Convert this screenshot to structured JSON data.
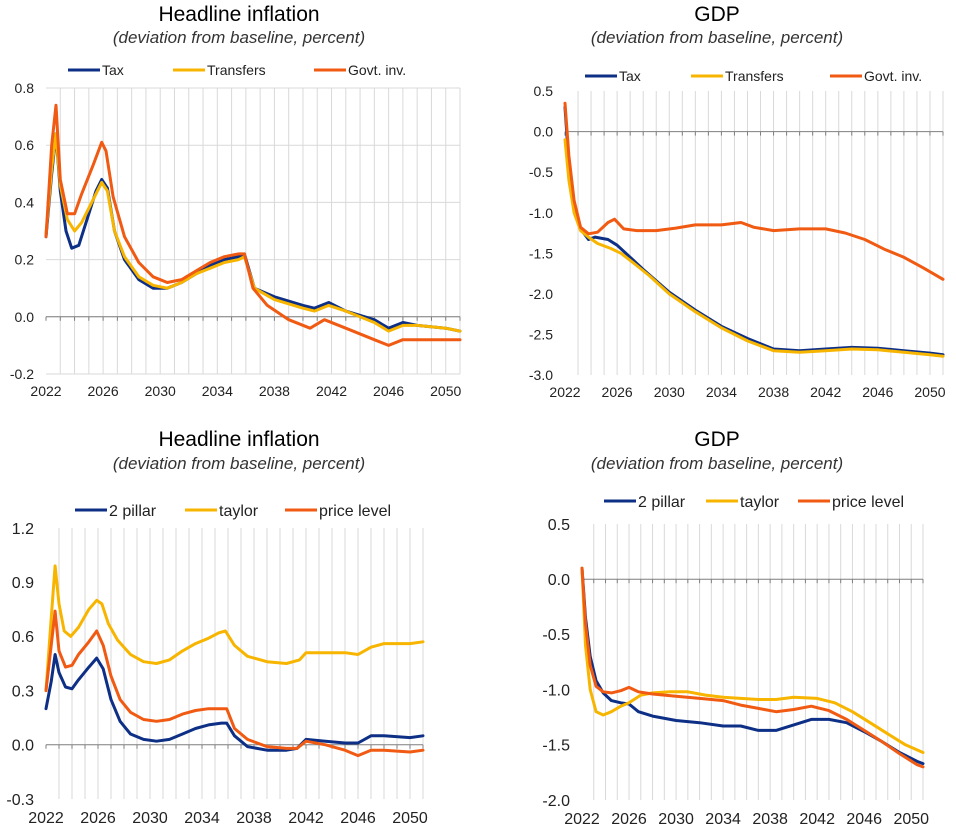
{
  "chart_data": [
    {
      "type": "line",
      "title": "Headline inflation",
      "subtitle": "(deviation from baseline, percent)",
      "xlim": [
        2022,
        2051
      ],
      "ylim": [
        -0.2,
        0.8
      ],
      "yticks": [
        "-0.2",
        "0.0",
        "0.2",
        "0.4",
        "0.6",
        "0.8"
      ],
      "xticks": [
        "2022",
        "2026",
        "2030",
        "2034",
        "2038",
        "2042",
        "2046",
        "2050"
      ],
      "grid": "horizontal and vertical",
      "legend": "top",
      "series": [
        {
          "name": "Tax",
          "color": "#0d2f86",
          "x": [
            2022,
            2022.4,
            2022.7,
            2023,
            2023.4,
            2023.8,
            2024.3,
            2025,
            2025.5,
            2025.9,
            2026.3,
            2026.8,
            2027.5,
            2028.5,
            2029.5,
            2030.5,
            2031.5,
            2032.5,
            2033.5,
            2034.5,
            2035.5,
            2035.9,
            2036.6,
            2038,
            2040,
            2040.8,
            2041.8,
            2043,
            2045,
            2046,
            2047,
            2048,
            2050,
            2051
          ],
          "y": [
            0.28,
            0.5,
            0.64,
            0.44,
            0.3,
            0.24,
            0.25,
            0.36,
            0.44,
            0.48,
            0.45,
            0.3,
            0.2,
            0.13,
            0.1,
            0.1,
            0.12,
            0.15,
            0.18,
            0.2,
            0.21,
            0.22,
            0.1,
            0.07,
            0.04,
            0.03,
            0.05,
            0.02,
            -0.01,
            -0.04,
            -0.02,
            -0.03,
            -0.04,
            -0.05
          ]
        },
        {
          "name": "Transfers",
          "color": "#f7b500",
          "x": [
            2022,
            2022.4,
            2022.7,
            2023,
            2023.5,
            2024,
            2024.5,
            2025.2,
            2025.9,
            2026.3,
            2026.8,
            2027.5,
            2028.5,
            2029.5,
            2030.5,
            2031.5,
            2032.5,
            2033.5,
            2034.5,
            2035.5,
            2035.9,
            2036.6,
            2038,
            2040,
            2040.8,
            2041.8,
            2043,
            2045,
            2046,
            2047,
            2048,
            2050,
            2051
          ],
          "y": [
            0.29,
            0.52,
            0.64,
            0.46,
            0.34,
            0.3,
            0.33,
            0.4,
            0.47,
            0.44,
            0.3,
            0.21,
            0.14,
            0.11,
            0.1,
            0.12,
            0.15,
            0.17,
            0.19,
            0.2,
            0.21,
            0.1,
            0.06,
            0.03,
            0.02,
            0.04,
            0.02,
            -0.02,
            -0.05,
            -0.03,
            -0.03,
            -0.04,
            -0.05
          ]
        },
        {
          "name": "Govt. inv.",
          "color": "#f05a12",
          "x": [
            2022,
            2022.4,
            2022.7,
            2023,
            2023.5,
            2024,
            2024.5,
            2025.3,
            2025.9,
            2026.2,
            2026.7,
            2027.5,
            2028.5,
            2029.5,
            2030.5,
            2031.5,
            2032.5,
            2033.5,
            2034.5,
            2035.5,
            2035.9,
            2036.5,
            2037.5,
            2039,
            2040.5,
            2041.5,
            2043,
            2045,
            2046,
            2047,
            2048,
            2050,
            2051
          ],
          "y": [
            0.28,
            0.6,
            0.74,
            0.48,
            0.36,
            0.36,
            0.43,
            0.53,
            0.61,
            0.58,
            0.42,
            0.28,
            0.19,
            0.14,
            0.12,
            0.13,
            0.16,
            0.19,
            0.21,
            0.22,
            0.22,
            0.1,
            0.04,
            -0.01,
            -0.04,
            -0.01,
            -0.04,
            -0.08,
            -0.1,
            -0.08,
            -0.08,
            -0.08,
            -0.08
          ]
        }
      ]
    },
    {
      "type": "line",
      "title": "GDP",
      "subtitle": "(deviation from baseline, percent)",
      "xlim": [
        2022,
        2051
      ],
      "ylim": [
        -3.0,
        0.5
      ],
      "yticks": [
        "-3.0",
        "-2.5",
        "-2.0",
        "-1.5",
        "-1.0",
        "-0.5",
        "0.0",
        "0.5"
      ],
      "xticks": [
        "2022",
        "2026",
        "2030",
        "2034",
        "2038",
        "2042",
        "2046",
        "2050"
      ],
      "grid": "vertical",
      "legend": "top",
      "series": [
        {
          "name": "Tax",
          "color": "#0d2f86",
          "x": [
            2022,
            2022.3,
            2022.7,
            2023.2,
            2023.8,
            2024.3,
            2025.3,
            2026,
            2027,
            2028,
            2030,
            2032,
            2034,
            2036,
            2038,
            2040,
            2042,
            2044,
            2046,
            2048,
            2050,
            2051
          ],
          "y": [
            0.3,
            -0.4,
            -0.9,
            -1.2,
            -1.33,
            -1.3,
            -1.33,
            -1.4,
            -1.55,
            -1.7,
            -1.98,
            -2.2,
            -2.4,
            -2.55,
            -2.68,
            -2.7,
            -2.68,
            -2.66,
            -2.67,
            -2.7,
            -2.73,
            -2.75
          ]
        },
        {
          "name": "Transfers",
          "color": "#f7b500",
          "x": [
            2022,
            2022.3,
            2022.7,
            2023.2,
            2023.8,
            2024.5,
            2025.5,
            2026.3,
            2027.5,
            2028.5,
            2030,
            2032,
            2034,
            2036,
            2038,
            2040,
            2042,
            2044,
            2046,
            2048,
            2050,
            2051
          ],
          "y": [
            -0.1,
            -0.6,
            -1.0,
            -1.22,
            -1.3,
            -1.38,
            -1.44,
            -1.5,
            -1.65,
            -1.78,
            -2.0,
            -2.22,
            -2.42,
            -2.58,
            -2.7,
            -2.72,
            -2.7,
            -2.68,
            -2.69,
            -2.72,
            -2.75,
            -2.77
          ]
        },
        {
          "name": "Govt. inv.",
          "color": "#f05a12",
          "x": [
            2022,
            2022.3,
            2022.7,
            2023.2,
            2023.8,
            2024.5,
            2025.3,
            2025.8,
            2026.5,
            2027.5,
            2029,
            2030.5,
            2032,
            2034,
            2035.5,
            2036.5,
            2038,
            2040,
            2042,
            2043.5,
            2045,
            2046.5,
            2048,
            2049.5,
            2051
          ],
          "y": [
            0.35,
            -0.3,
            -0.85,
            -1.18,
            -1.26,
            -1.24,
            -1.12,
            -1.08,
            -1.2,
            -1.22,
            -1.22,
            -1.19,
            -1.15,
            -1.15,
            -1.12,
            -1.18,
            -1.22,
            -1.2,
            -1.2,
            -1.25,
            -1.33,
            -1.45,
            -1.55,
            -1.68,
            -1.82
          ]
        }
      ]
    },
    {
      "type": "line",
      "title": "Headline inflation",
      "subtitle": "(deviation from baseline, percent)",
      "xlim": [
        2022,
        2051
      ],
      "ylim": [
        -0.3,
        1.2
      ],
      "yticks": [
        "-0.3",
        "0.0",
        "0.3",
        "0.6",
        "0.9",
        "1.2"
      ],
      "xticks": [
        "2022",
        "2026",
        "2030",
        "2034",
        "2038",
        "2042",
        "2046",
        "2050"
      ],
      "grid": "vertical",
      "legend": "top",
      "series": [
        {
          "name": "2 pillar",
          "color": "#0d2f86",
          "x": [
            2022,
            2022.4,
            2022.7,
            2023,
            2023.5,
            2024,
            2024.5,
            2025.3,
            2025.9,
            2026.4,
            2027,
            2027.7,
            2028.5,
            2029.5,
            2030.5,
            2031.5,
            2032.5,
            2033.5,
            2034.5,
            2035.5,
            2035.9,
            2036.5,
            2037.5,
            2039,
            2040.5,
            2041.3,
            2042,
            2043.5,
            2045,
            2046,
            2047,
            2048,
            2050,
            2051
          ],
          "y": [
            0.2,
            0.35,
            0.5,
            0.4,
            0.32,
            0.31,
            0.36,
            0.43,
            0.48,
            0.42,
            0.25,
            0.13,
            0.06,
            0.03,
            0.02,
            0.03,
            0.06,
            0.09,
            0.11,
            0.12,
            0.12,
            0.05,
            -0.01,
            -0.03,
            -0.03,
            -0.02,
            0.03,
            0.02,
            0.01,
            0.01,
            0.05,
            0.05,
            0.04,
            0.05
          ]
        },
        {
          "name": "taylor",
          "color": "#f7b500",
          "x": [
            2022,
            2022.4,
            2022.7,
            2023,
            2023.4,
            2023.9,
            2024.5,
            2025.3,
            2025.9,
            2026.3,
            2026.8,
            2027.5,
            2028.5,
            2029.5,
            2030.5,
            2031.5,
            2032.5,
            2033.5,
            2034.5,
            2035.3,
            2035.8,
            2036.5,
            2037.5,
            2039,
            2040.5,
            2041.5,
            2042,
            2043.5,
            2045,
            2046,
            2047,
            2048,
            2050,
            2051
          ],
          "y": [
            0.3,
            0.7,
            0.99,
            0.78,
            0.63,
            0.6,
            0.65,
            0.75,
            0.8,
            0.78,
            0.67,
            0.58,
            0.5,
            0.46,
            0.45,
            0.47,
            0.52,
            0.56,
            0.59,
            0.62,
            0.63,
            0.55,
            0.49,
            0.46,
            0.45,
            0.47,
            0.51,
            0.51,
            0.51,
            0.5,
            0.54,
            0.56,
            0.56,
            0.57
          ]
        },
        {
          "name": "price level",
          "color": "#f05a12",
          "x": [
            2022,
            2022.4,
            2022.7,
            2023,
            2023.5,
            2024,
            2024.5,
            2025.3,
            2025.9,
            2026.4,
            2027,
            2027.7,
            2028.5,
            2029.5,
            2030.5,
            2031.5,
            2032.5,
            2033.5,
            2034.5,
            2035.5,
            2035.9,
            2036.5,
            2037.5,
            2039,
            2040.5,
            2041.3,
            2042,
            2043.5,
            2045,
            2046,
            2047,
            2048,
            2050,
            2051
          ],
          "y": [
            0.3,
            0.55,
            0.74,
            0.52,
            0.43,
            0.44,
            0.5,
            0.57,
            0.63,
            0.55,
            0.38,
            0.25,
            0.18,
            0.14,
            0.13,
            0.14,
            0.17,
            0.19,
            0.2,
            0.2,
            0.2,
            0.09,
            0.03,
            -0.01,
            -0.02,
            -0.02,
            0.02,
            0.0,
            -0.03,
            -0.06,
            -0.03,
            -0.03,
            -0.04,
            -0.03
          ]
        }
      ]
    },
    {
      "type": "line",
      "title": "GDP",
      "subtitle": "(deviation from baseline, percent)",
      "xlim": [
        2022,
        2051
      ],
      "ylim": [
        -2.0,
        0.5
      ],
      "yticks": [
        "-2.0",
        "-1.5",
        "-1.0",
        "-0.5",
        "0.0",
        "0.5"
      ],
      "xticks": [
        "2022",
        "2026",
        "2030",
        "2034",
        "2038",
        "2042",
        "2046",
        "2050"
      ],
      "grid": "vertical",
      "legend": "top",
      "series": [
        {
          "name": "2 pillar",
          "color": "#0d2f86",
          "x": [
            2022,
            2022.3,
            2022.7,
            2023.2,
            2023.8,
            2024.5,
            2025.3,
            2026,
            2026.8,
            2028,
            2030,
            2032,
            2034,
            2035.5,
            2037,
            2038.5,
            2040,
            2041.5,
            2043,
            2044.5,
            2046,
            2047.5,
            2049,
            2050.5,
            2051
          ],
          "y": [
            0.1,
            -0.35,
            -0.7,
            -0.92,
            -1.03,
            -1.1,
            -1.12,
            -1.13,
            -1.2,
            -1.24,
            -1.28,
            -1.3,
            -1.33,
            -1.33,
            -1.37,
            -1.37,
            -1.32,
            -1.27,
            -1.27,
            -1.3,
            -1.38,
            -1.47,
            -1.57,
            -1.65,
            -1.67
          ]
        },
        {
          "name": "taylor",
          "color": "#f7b500",
          "x": [
            2022,
            2022.3,
            2022.7,
            2023.2,
            2023.8,
            2024.5,
            2025.3,
            2026,
            2027,
            2028,
            2029.5,
            2031,
            2032.5,
            2034,
            2035.5,
            2037,
            2038.5,
            2040,
            2042,
            2043.5,
            2045,
            2046.5,
            2048,
            2049.5,
            2051
          ],
          "y": [
            0.1,
            -0.6,
            -1.0,
            -1.2,
            -1.23,
            -1.2,
            -1.15,
            -1.12,
            -1.05,
            -1.03,
            -1.02,
            -1.02,
            -1.05,
            -1.07,
            -1.08,
            -1.09,
            -1.09,
            -1.07,
            -1.08,
            -1.12,
            -1.2,
            -1.3,
            -1.4,
            -1.5,
            -1.57
          ]
        },
        {
          "name": "price level",
          "color": "#f05a12",
          "x": [
            2022,
            2022.3,
            2022.7,
            2023.2,
            2023.8,
            2024.5,
            2025.3,
            2026,
            2026.8,
            2028,
            2030,
            2032,
            2034,
            2035.5,
            2037,
            2038.5,
            2040,
            2041.5,
            2043,
            2044.5,
            2046,
            2047.5,
            2049,
            2050.5,
            2051
          ],
          "y": [
            0.1,
            -0.4,
            -0.78,
            -0.97,
            -1.02,
            -1.03,
            -1.01,
            -0.98,
            -1.02,
            -1.04,
            -1.06,
            -1.08,
            -1.1,
            -1.14,
            -1.17,
            -1.2,
            -1.18,
            -1.15,
            -1.19,
            -1.27,
            -1.37,
            -1.47,
            -1.58,
            -1.68,
            -1.7
          ]
        }
      ]
    }
  ]
}
